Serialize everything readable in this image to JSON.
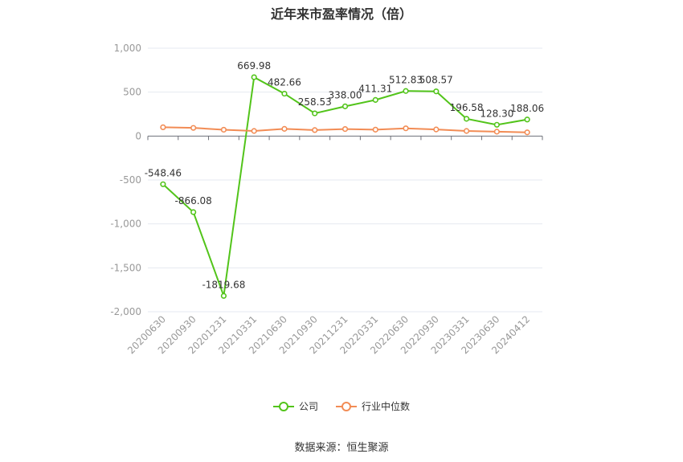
{
  "chart_data": {
    "type": "line",
    "title": "近年来市盈率情况（倍）",
    "categories": [
      "20200630",
      "20200930",
      "20201231",
      "20210331",
      "20210630",
      "20210930",
      "20211231",
      "20220331",
      "20220630",
      "20220930",
      "20230331",
      "20230630",
      "20240412"
    ],
    "series": [
      {
        "name": "公司",
        "color": "#52c41a",
        "values": [
          -548.46,
          -866.08,
          -1819.68,
          669.98,
          482.66,
          258.53,
          338.0,
          411.31,
          512.83,
          508.57,
          196.58,
          128.3,
          188.06
        ],
        "labels": [
          "-548.46",
          "-866.08",
          "-1819.68",
          "669.98",
          "482.66",
          "258.53",
          "338.00",
          "411.31",
          "512.83",
          "508.57",
          "196.58",
          "128.30",
          "188.06"
        ]
      },
      {
        "name": "行业中位数",
        "color": "#f28c55",
        "values": [
          100,
          93,
          72,
          58,
          82,
          68,
          80,
          73,
          88,
          75,
          58,
          50,
          42
        ]
      }
    ],
    "ylim": [
      -2000,
      1000
    ],
    "yticks": [
      1000,
      500,
      0,
      -500,
      -1000,
      -1500,
      -2000
    ],
    "ytick_labels": [
      "1,000",
      "500",
      "0",
      "-500",
      "-1,000",
      "-1,500",
      "-2,000"
    ],
    "grid": true,
    "legend_position": "bottom"
  },
  "source": "数据来源：恒生聚源"
}
